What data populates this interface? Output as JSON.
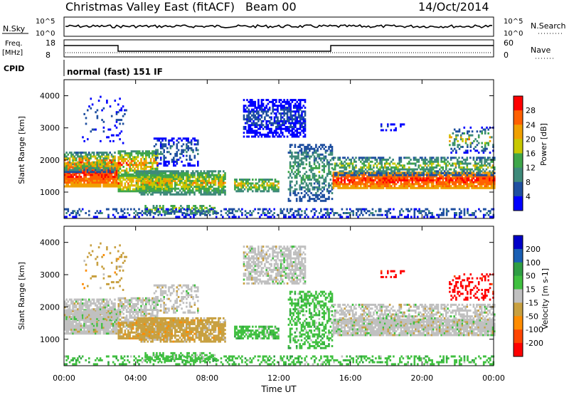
{
  "header": {
    "station": "Christmas Valley East (fitACF)",
    "beam": "Beam 00",
    "date": "14/Oct/2014"
  },
  "noise_panel": {
    "left_label": "N.Sky",
    "left_ticks": [
      "10^5",
      "10^0"
    ],
    "right_ticks": [
      "10^5",
      "10^0"
    ],
    "right_label": "N.Search"
  },
  "freq_panel": {
    "left_label_line1": "Freq.",
    "left_label_line2": "[MHz]",
    "left_ticks": [
      "18",
      "8"
    ],
    "right_ticks": [
      "60",
      "0"
    ],
    "right_label": "Nave"
  },
  "cpid": {
    "label": "CPID",
    "program": "normal (fast) 151 IF"
  },
  "colors": {
    "power_scale": [
      "#0000ff",
      "#1f4fa0",
      "#3e8a7a",
      "#3fa64a",
      "#c8c800",
      "#f0a000",
      "#ff6000",
      "#ff0000"
    ],
    "velocity_scale": [
      "#ff0000",
      "#ff4500",
      "#ff8c00",
      "#c8a040",
      "#c0c0c0",
      "#40c040",
      "#2f9e44",
      "#1a5fb4",
      "#0000c8"
    ]
  },
  "chart_data": [
    {
      "type": "heatmap",
      "name": "power",
      "ylabel": "Slant Range [km]",
      "ylim": [
        180,
        4500
      ],
      "xlim": [
        0,
        24
      ],
      "y_ticks": [
        "1000",
        "2000",
        "3000",
        "4000"
      ],
      "colorbar_label": "Power [dB]",
      "colorbar_ticks": [
        "4",
        "8",
        "12",
        "16",
        "20",
        "24",
        "28"
      ],
      "colorbar_range": [
        0,
        32
      ]
    },
    {
      "type": "heatmap",
      "name": "velocity",
      "ylabel": "Slant Range [km]",
      "ylim": [
        180,
        4500
      ],
      "xlim": [
        0,
        24
      ],
      "y_ticks": [
        "1000",
        "2000",
        "3000",
        "4000"
      ],
      "colorbar_label": "Velocity [m s-1]",
      "colorbar_ticks": [
        "200",
        "100",
        "50",
        "15",
        "-15",
        "-50",
        "-100",
        "-200"
      ]
    }
  ],
  "x_axis": {
    "ticks": [
      "00:00",
      "04:00",
      "08:00",
      "12:00",
      "16:00",
      "20:00",
      "00:00"
    ],
    "label": "Time UT"
  }
}
